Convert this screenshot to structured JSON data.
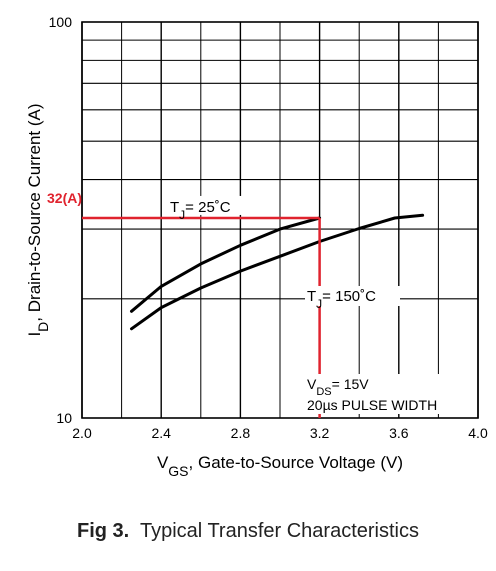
{
  "chart_data": {
    "type": "line",
    "title": "",
    "xlabel": "V_GS, Gate-to-Source Voltage (V)",
    "ylabel": "I_D, Drain-to-Source Current (A)",
    "xlim": [
      2.0,
      4.0
    ],
    "ylim": [
      10,
      100
    ],
    "yscale": "log",
    "grid": true,
    "x_ticks": [
      "2.0",
      "2.4",
      "2.8",
      "3.2",
      "3.6",
      "4.0"
    ],
    "y_ticks": [
      "10",
      "100"
    ],
    "series": [
      {
        "name": "TJ = 25°C",
        "x": [
          2.25,
          2.4,
          2.6,
          2.8,
          3.0,
          3.2
        ],
        "y": [
          18.6,
          21.5,
          24.5,
          27.3,
          30.0,
          32.0
        ]
      },
      {
        "name": "TJ = 150°C",
        "x": [
          2.25,
          2.4,
          2.6,
          2.8,
          3.0,
          3.2,
          3.4,
          3.58,
          3.72
        ],
        "y": [
          16.8,
          19.0,
          21.3,
          23.5,
          25.6,
          27.9,
          30.1,
          32.0,
          32.5
        ]
      }
    ],
    "annotations": {
      "tj25": {
        "pre": "T",
        "sub": "J",
        "post": "= 25˚C"
      },
      "tj150": {
        "pre": "T",
        "sub": "J",
        "post": "= 150˚C"
      },
      "vds": {
        "pre": "V",
        "sub": "DS",
        "post": "= 15V"
      },
      "pulse": "20µs PULSE WIDTH",
      "marker_label": "32(A)",
      "marker_value": {
        "x": 3.2,
        "y": 32
      }
    },
    "xlabel_parts": {
      "pre": "V",
      "sub": "GS",
      "post": ", Gate-to-Source Voltage (V)"
    },
    "ylabel_parts": {
      "pre": "I",
      "sub": "D",
      "post": ",  Drain-to-Source Current (A)"
    },
    "colors": {
      "curve": "#000000",
      "grid": "#000000",
      "marker": "#e0232e"
    }
  },
  "caption": {
    "label": "Fig 3.",
    "text": "Typical Transfer Characteristics"
  }
}
